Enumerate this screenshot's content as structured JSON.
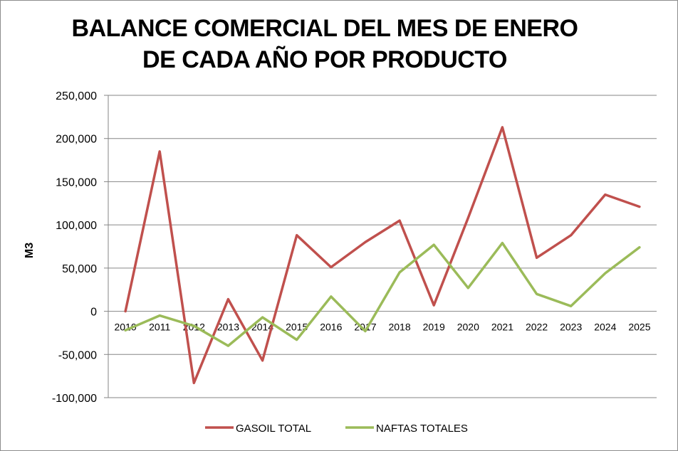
{
  "chart_data": {
    "type": "line",
    "title_line1": "BALANCE COMERCIAL DEL MES DE ENERO",
    "title_line2": "DE CADA AÑO POR PRODUCTO",
    "xlabel": "",
    "ylabel": "M3",
    "ylim": [
      -100000,
      250000
    ],
    "yticks": [
      250000,
      200000,
      150000,
      100000,
      50000,
      0,
      -50000,
      -100000
    ],
    "ytick_labels": [
      "250,000",
      "200,000",
      "150,000",
      "100,000",
      "50,000",
      "0",
      "-50,000",
      "-100,000"
    ],
    "categories": [
      "2010",
      "2011",
      "2012",
      "2013",
      "2014",
      "2015",
      "2016",
      "2017",
      "2018",
      "2019",
      "2020",
      "2021",
      "2022",
      "2023",
      "2024",
      "2025"
    ],
    "grid": "horizontal",
    "legend_position": "bottom",
    "series": [
      {
        "name": "GASOIL TOTAL",
        "color": "#c0504d",
        "values": [
          0,
          185000,
          -83000,
          14000,
          -57000,
          88000,
          51000,
          80000,
          105000,
          7000,
          108000,
          213000,
          62000,
          88000,
          135000,
          121000
        ]
      },
      {
        "name": "NAFTAS TOTALES",
        "color": "#9bbb59",
        "values": [
          -22000,
          -5000,
          -17000,
          -40000,
          -7000,
          -33000,
          17000,
          -23000,
          45000,
          77000,
          27000,
          79000,
          20000,
          6000,
          44000,
          74000
        ]
      }
    ]
  }
}
